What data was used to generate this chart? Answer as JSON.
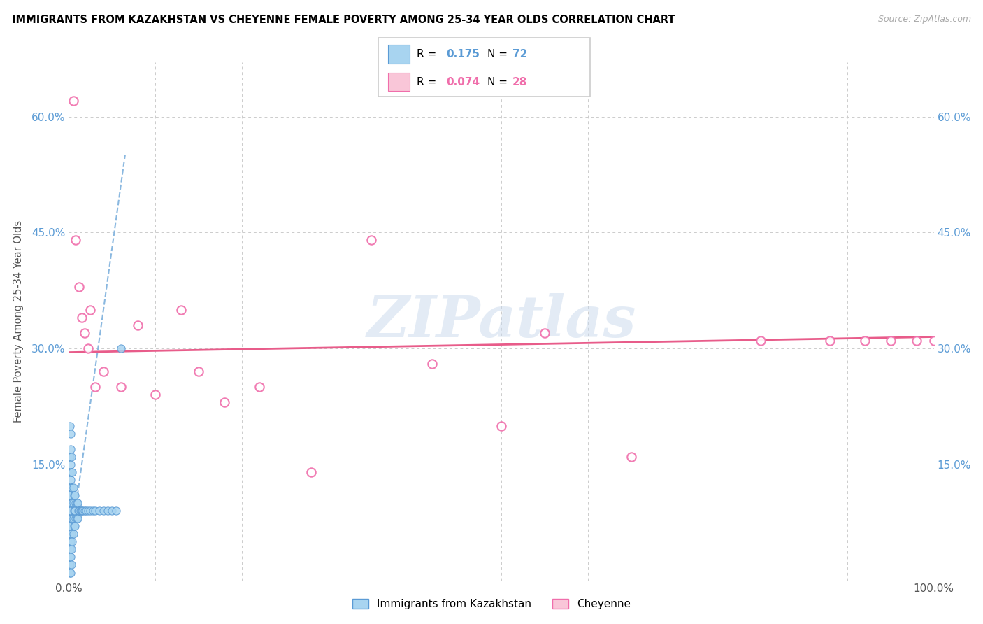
{
  "title": "IMMIGRANTS FROM KAZAKHSTAN VS CHEYENNE FEMALE POVERTY AMONG 25-34 YEAR OLDS CORRELATION CHART",
  "source": "Source: ZipAtlas.com",
  "ylabel": "Female Poverty Among 25-34 Year Olds",
  "xmin": 0.0,
  "xmax": 1.0,
  "ymin": 0.0,
  "ymax": 0.67,
  "y_ticks": [
    0.0,
    0.15,
    0.3,
    0.45,
    0.6
  ],
  "y_tick_labels": [
    "",
    "15.0%",
    "30.0%",
    "45.0%",
    "60.0%"
  ],
  "x_tick_positions": [
    0.0,
    0.1,
    0.2,
    0.3,
    0.4,
    0.5,
    0.6,
    0.7,
    0.8,
    0.9,
    1.0
  ],
  "color_blue_fill": "#a8d4f0",
  "color_blue_edge": "#5b9bd5",
  "color_pink_fill": "#f9c6d8",
  "color_pink_edge": "#f06eab",
  "trendline_blue_color": "#8ab8e0",
  "trendline_pink_color": "#e85c8a",
  "color_r_blue": "#5b9bd5",
  "color_r_pink": "#f06eab",
  "watermark": "ZIPatlas",
  "blue_scatter_x": [
    0.001,
    0.001,
    0.001,
    0.001,
    0.001,
    0.001,
    0.001,
    0.001,
    0.001,
    0.001,
    0.001,
    0.001,
    0.001,
    0.001,
    0.001,
    0.002,
    0.002,
    0.002,
    0.002,
    0.002,
    0.002,
    0.002,
    0.002,
    0.002,
    0.002,
    0.003,
    0.003,
    0.003,
    0.003,
    0.003,
    0.003,
    0.003,
    0.003,
    0.004,
    0.004,
    0.004,
    0.004,
    0.004,
    0.005,
    0.005,
    0.005,
    0.005,
    0.006,
    0.006,
    0.006,
    0.007,
    0.007,
    0.007,
    0.008,
    0.008,
    0.009,
    0.009,
    0.01,
    0.01,
    0.011,
    0.012,
    0.013,
    0.014,
    0.015,
    0.016,
    0.018,
    0.02,
    0.022,
    0.025,
    0.028,
    0.03,
    0.035,
    0.04,
    0.045,
    0.05,
    0.055,
    0.06
  ],
  "blue_scatter_y": [
    0.01,
    0.02,
    0.03,
    0.04,
    0.05,
    0.06,
    0.07,
    0.08,
    0.09,
    0.1,
    0.11,
    0.12,
    0.14,
    0.16,
    0.2,
    0.01,
    0.03,
    0.05,
    0.07,
    0.09,
    0.11,
    0.13,
    0.15,
    0.17,
    0.19,
    0.02,
    0.04,
    0.06,
    0.08,
    0.1,
    0.12,
    0.14,
    0.16,
    0.05,
    0.08,
    0.1,
    0.12,
    0.14,
    0.06,
    0.08,
    0.1,
    0.12,
    0.07,
    0.09,
    0.11,
    0.07,
    0.09,
    0.11,
    0.08,
    0.1,
    0.08,
    0.1,
    0.08,
    0.1,
    0.09,
    0.09,
    0.09,
    0.09,
    0.09,
    0.09,
    0.09,
    0.09,
    0.09,
    0.09,
    0.09,
    0.09,
    0.09,
    0.09,
    0.09,
    0.09,
    0.09,
    0.3
  ],
  "pink_scatter_x": [
    0.005,
    0.008,
    0.012,
    0.015,
    0.018,
    0.022,
    0.025,
    0.03,
    0.04,
    0.06,
    0.08,
    0.1,
    0.13,
    0.15,
    0.18,
    0.22,
    0.28,
    0.35,
    0.42,
    0.5,
    0.55,
    0.65,
    0.8,
    0.88,
    0.92,
    0.95,
    0.98,
    1.0
  ],
  "pink_scatter_y": [
    0.62,
    0.44,
    0.38,
    0.34,
    0.32,
    0.3,
    0.35,
    0.25,
    0.27,
    0.25,
    0.33,
    0.24,
    0.35,
    0.27,
    0.23,
    0.25,
    0.14,
    0.44,
    0.28,
    0.2,
    0.32,
    0.16,
    0.31,
    0.31,
    0.31,
    0.31,
    0.31,
    0.31
  ],
  "blue_trend_x0": 0.0,
  "blue_trend_x1": 0.065,
  "blue_trend_y0": 0.03,
  "blue_trend_y1": 0.55,
  "pink_trend_x0": 0.0,
  "pink_trend_x1": 1.0,
  "pink_trend_y0": 0.295,
  "pink_trend_y1": 0.315
}
